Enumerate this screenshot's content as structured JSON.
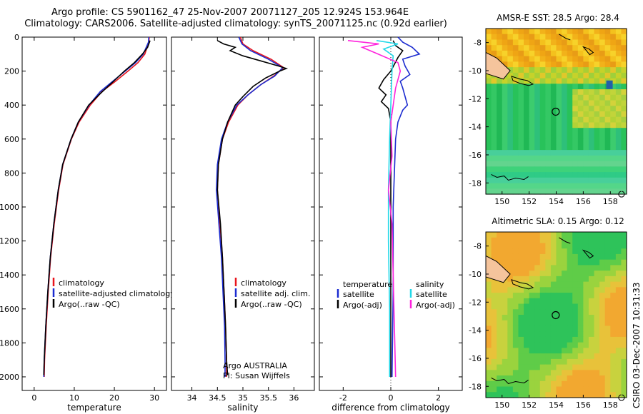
{
  "title": {
    "line1": "Argo profile: CS 5901162_47 25-Nov-2007 20071127_205 12.924S 153.964E",
    "line2": "Climatology: CARS2006. Satellite-adjusted climatology: synTS_20071125.nc (0.92d earlier)"
  },
  "footer": "CSIRO 03-Dec-2007 10:31:33",
  "colors": {
    "climatology": "#e8141c",
    "satellite": "#1b2bd0",
    "argo": "#000000",
    "sat_salinity": "#22d8e8",
    "argo_salinity_diff": "#ff22dd"
  },
  "chart_data": [
    {
      "type": "line",
      "xlabel": "temperature",
      "ylabel": "",
      "xlim": [
        -3,
        33
      ],
      "ylim": [
        2080,
        0
      ],
      "xticks": [
        0,
        10,
        20,
        30
      ],
      "yticks": [
        0,
        200,
        400,
        600,
        800,
        1000,
        1200,
        1400,
        1600,
        1800,
        2000
      ],
      "legend": [
        "climatology",
        "satellite-adjusted climatology",
        "Argo(..raw -QC)"
      ],
      "legend_position": "lower-right",
      "series": [
        {
          "name": "climatology",
          "color": "red",
          "points": [
            [
              28.7,
              0
            ],
            [
              28.6,
              30
            ],
            [
              27.6,
              100
            ],
            [
              25.9,
              150
            ],
            [
              23.4,
              200
            ],
            [
              20.3,
              260
            ],
            [
              16.9,
              320
            ],
            [
              14.0,
              400
            ],
            [
              11.2,
              500
            ],
            [
              9.3,
              600
            ],
            [
              7.2,
              750
            ],
            [
              6.1,
              900
            ],
            [
              5.0,
              1100
            ],
            [
              4.1,
              1300
            ],
            [
              3.5,
              1500
            ],
            [
              3.0,
              1700
            ],
            [
              2.6,
              1900
            ],
            [
              2.5,
              2000
            ]
          ]
        },
        {
          "name": "satellite-adjusted climatology",
          "color": "blue",
          "points": [
            [
              28.6,
              0
            ],
            [
              28.5,
              30
            ],
            [
              27.2,
              100
            ],
            [
              25.3,
              150
            ],
            [
              22.7,
              200
            ],
            [
              19.6,
              260
            ],
            [
              16.5,
              320
            ],
            [
              13.7,
              400
            ],
            [
              11.0,
              500
            ],
            [
              9.2,
              600
            ],
            [
              7.1,
              750
            ],
            [
              6.0,
              900
            ],
            [
              4.9,
              1100
            ],
            [
              4.0,
              1300
            ],
            [
              3.4,
              1500
            ],
            [
              2.9,
              1700
            ],
            [
              2.5,
              1900
            ],
            [
              2.4,
              2000
            ]
          ]
        },
        {
          "name": "Argo(..raw -QC)",
          "color": "black",
          "points": [
            [
              28.9,
              20
            ],
            [
              28.3,
              60
            ],
            [
              27.0,
              100
            ],
            [
              25.0,
              150
            ],
            [
              22.5,
              200
            ],
            [
              19.8,
              260
            ],
            [
              16.6,
              330
            ],
            [
              13.6,
              400
            ],
            [
              11.0,
              500
            ],
            [
              9.2,
              600
            ],
            [
              7.1,
              750
            ],
            [
              6.0,
              900
            ],
            [
              4.9,
              1100
            ],
            [
              4.0,
              1300
            ],
            [
              3.4,
              1500
            ],
            [
              2.9,
              1700
            ],
            [
              2.5,
              1900
            ],
            [
              2.4,
              1990
            ]
          ]
        }
      ]
    },
    {
      "type": "line",
      "xlabel": "salinity",
      "xlim": [
        33.6,
        36.4
      ],
      "ylim": [
        2080,
        0
      ],
      "xticks": [
        34,
        34.5,
        35,
        35.5,
        36
      ],
      "legend": [
        "climatology",
        "satellite adj. clim.",
        "Argo(..raw -QC)"
      ],
      "legend_position": "lower-right",
      "annotation": [
        "Argo AUSTRALIA",
        "PI: Susan Wijffels"
      ],
      "series": [
        {
          "name": "climatology",
          "color": "red",
          "points": [
            [
              34.95,
              0
            ],
            [
              35.0,
              40
            ],
            [
              35.2,
              80
            ],
            [
              35.55,
              130
            ],
            [
              35.8,
              180
            ],
            [
              35.6,
              230
            ],
            [
              35.35,
              280
            ],
            [
              35.1,
              340
            ],
            [
              34.9,
              400
            ],
            [
              34.72,
              500
            ],
            [
              34.6,
              600
            ],
            [
              34.52,
              750
            ],
            [
              34.5,
              900
            ],
            [
              34.55,
              1100
            ],
            [
              34.6,
              1300
            ],
            [
              34.63,
              1500
            ],
            [
              34.66,
              1700
            ],
            [
              34.68,
              1900
            ],
            [
              34.68,
              2000
            ]
          ]
        },
        {
          "name": "satellite adj. clim.",
          "color": "blue",
          "points": [
            [
              34.92,
              0
            ],
            [
              34.98,
              40
            ],
            [
              35.15,
              80
            ],
            [
              35.5,
              130
            ],
            [
              35.78,
              180
            ],
            [
              35.62,
              230
            ],
            [
              35.35,
              280
            ],
            [
              35.1,
              340
            ],
            [
              34.88,
              400
            ],
            [
              34.7,
              500
            ],
            [
              34.58,
              600
            ],
            [
              34.5,
              750
            ],
            [
              34.48,
              900
            ],
            [
              34.53,
              1100
            ],
            [
              34.58,
              1300
            ],
            [
              34.61,
              1500
            ],
            [
              34.64,
              1700
            ],
            [
              34.65,
              1900
            ],
            [
              34.65,
              2000
            ]
          ]
        },
        {
          "name": "Argo(..raw -QC)",
          "color": "black",
          "points": [
            [
              34.5,
              20
            ],
            [
              34.62,
              40
            ],
            [
              34.85,
              60
            ],
            [
              34.75,
              80
            ],
            [
              35.0,
              110
            ],
            [
              35.35,
              140
            ],
            [
              35.7,
              170
            ],
            [
              35.85,
              185
            ],
            [
              35.72,
              200
            ],
            [
              35.45,
              240
            ],
            [
              35.2,
              290
            ],
            [
              35.0,
              350
            ],
            [
              34.85,
              400
            ],
            [
              34.7,
              500
            ],
            [
              34.6,
              600
            ],
            [
              34.52,
              750
            ],
            [
              34.5,
              900
            ],
            [
              34.56,
              1100
            ],
            [
              34.6,
              1300
            ],
            [
              34.63,
              1500
            ],
            [
              34.66,
              1700
            ],
            [
              34.68,
              1900
            ],
            [
              34.7,
              1990
            ]
          ]
        }
      ]
    },
    {
      "type": "line",
      "xlabel": "difference from climatology",
      "xlim": [
        -3,
        3
      ],
      "ylim": [
        2080,
        0
      ],
      "xticks": [
        -2,
        0,
        2
      ],
      "legend": [
        "temperature",
        "satellite",
        "Argo(-adj)",
        "salinity",
        "satellite",
        "Argo(-adj)"
      ],
      "legend_position": "lower",
      "series": [
        {
          "name": "temperature satellite",
          "color": "blue",
          "points": [
            [
              0.3,
              0
            ],
            [
              0.5,
              30
            ],
            [
              0.9,
              60
            ],
            [
              1.2,
              100
            ],
            [
              0.5,
              130
            ],
            [
              0.6,
              170
            ],
            [
              0.8,
              220
            ],
            [
              0.4,
              260
            ],
            [
              0.5,
              300
            ],
            [
              0.7,
              400
            ],
            [
              0.5,
              430
            ],
            [
              0.3,
              500
            ],
            [
              0.2,
              600
            ],
            [
              0.15,
              800
            ],
            [
              0.1,
              1000
            ],
            [
              0.1,
              1500
            ],
            [
              0.05,
              2000
            ]
          ]
        },
        {
          "name": "temperature Argo(-adj)",
          "color": "black",
          "points": [
            [
              0.1,
              20
            ],
            [
              0.2,
              50
            ],
            [
              0.5,
              80
            ],
            [
              0.3,
              120
            ],
            [
              0.0,
              200
            ],
            [
              -0.3,
              250
            ],
            [
              -0.5,
              300
            ],
            [
              -0.2,
              340
            ],
            [
              -0.4,
              380
            ],
            [
              -0.1,
              420
            ],
            [
              0.0,
              500
            ],
            [
              0.0,
              700
            ],
            [
              0.0,
              1000
            ],
            [
              0.0,
              1500
            ],
            [
              0.0,
              2000
            ]
          ]
        },
        {
          "name": "salinity satellite",
          "color": "cyan",
          "points": [
            [
              -0.6,
              20
            ],
            [
              0.3,
              40
            ],
            [
              -0.3,
              70
            ],
            [
              0.1,
              110
            ],
            [
              0.05,
              200
            ],
            [
              0.0,
              400
            ],
            [
              -0.05,
              600
            ],
            [
              -0.1,
              900
            ],
            [
              -0.1,
              1200
            ],
            [
              -0.05,
              1600
            ],
            [
              -0.05,
              2000
            ]
          ]
        },
        {
          "name": "salinity Argo(-adj)",
          "color": "magenta",
          "points": [
            [
              -1.8,
              20
            ],
            [
              -0.5,
              40
            ],
            [
              -1.2,
              60
            ],
            [
              -0.7,
              90
            ],
            [
              0.3,
              150
            ],
            [
              0.4,
              200
            ],
            [
              0.2,
              300
            ],
            [
              0.0,
              500
            ],
            [
              0.05,
              700
            ],
            [
              -0.1,
              900
            ],
            [
              0.05,
              1100
            ],
            [
              0.1,
              1400
            ],
            [
              0.15,
              1700
            ],
            [
              0.2,
              2000
            ]
          ]
        }
      ]
    }
  ],
  "maps": [
    {
      "title": "AMSR-E SST: 28.5  Argo: 28.4",
      "xticks": [
        150,
        152,
        154,
        156,
        158
      ],
      "yticks": [
        -8,
        -10,
        -12,
        -14,
        -16,
        -18
      ]
    },
    {
      "title": "Altimetric SLA: 0.15  Argo: 0.12",
      "xticks": [
        150,
        152,
        154,
        156,
        158
      ],
      "yticks": [
        -8,
        -10,
        -12,
        -14,
        -16,
        -18
      ]
    }
  ],
  "y_tick_labels": [
    "0",
    "200",
    "400",
    "600",
    "800",
    "1000",
    "1200",
    "1400",
    "1600",
    "1800",
    "2000"
  ]
}
